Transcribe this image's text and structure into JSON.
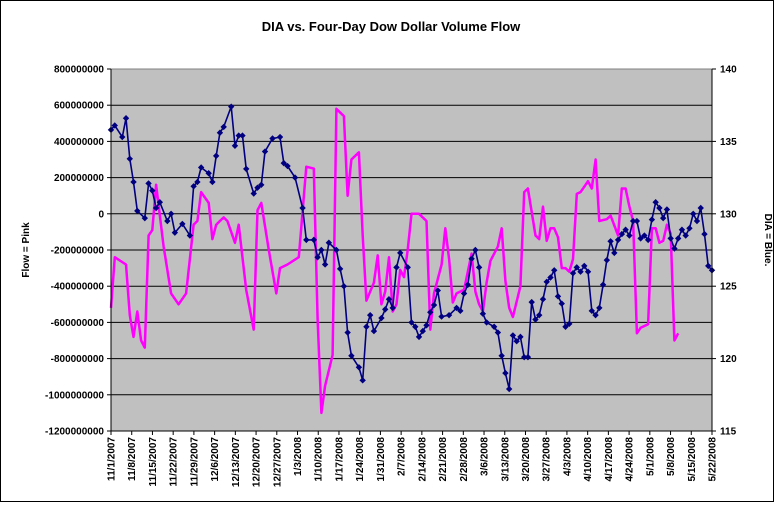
{
  "chart_data": {
    "type": "line",
    "title": "DIA vs. Four-Day Dow Dollar Volume Flow",
    "ylabel_left": "Flow = Pink",
    "ylabel_right": "DIA = Blue.",
    "y_left_range": [
      -1200000000,
      800000000
    ],
    "y_left_ticks": [
      "800000000",
      "600000000",
      "400000000",
      "200000000",
      "0",
      "-200000000",
      "-400000000",
      "-600000000",
      "-800000000",
      "-1000000000",
      "-1200000000"
    ],
    "y_right_range": [
      115,
      140
    ],
    "y_right_ticks": [
      "140",
      "135",
      "130",
      "125",
      "120",
      "115"
    ],
    "x_tick_labels": [
      "11/1/2007",
      "11/8/2007",
      "11/15/2007",
      "11/22/2007",
      "11/29/2007",
      "12/6/2007",
      "12/13/2007",
      "12/20/2007",
      "12/27/2007",
      "1/3/2008",
      "1/10/2008",
      "1/17/2008",
      "1/24/2008",
      "1/31/2008",
      "2/7/2008",
      "2/14/2008",
      "2/21/2008",
      "2/28/2008",
      "3/6/2008",
      "3/13/2008",
      "3/20/2008",
      "3/27/2008",
      "4/3/2008",
      "4/10/2008",
      "4/17/2008",
      "4/24/2008",
      "5/1/2008",
      "5/8/2008",
      "5/15/2008",
      "5/22/2008"
    ],
    "x_range": [
      "2007-11-01",
      "2008-05-22"
    ],
    "grid": "horizontal",
    "plot_background": "#C0C0C0",
    "series": [
      {
        "name": "Flow",
        "axis": "left",
        "color": "#FF00FF",
        "values": [
          [
            0,
            -520000000
          ],
          [
            1,
            -240000000
          ],
          [
            4,
            -280000000
          ],
          [
            5,
            -560000000
          ],
          [
            6,
            -680000000
          ],
          [
            7,
            -540000000
          ],
          [
            8,
            -700000000
          ],
          [
            9,
            -740000000
          ],
          [
            10,
            -120000000
          ],
          [
            11,
            -90000000
          ],
          [
            12,
            160000000
          ],
          [
            14,
            -180000000
          ],
          [
            16,
            -440000000
          ],
          [
            18,
            -500000000
          ],
          [
            20,
            -440000000
          ],
          [
            22,
            -60000000
          ],
          [
            23,
            -40000000
          ],
          [
            24,
            120000000
          ],
          [
            26,
            60000000
          ],
          [
            27,
            -140000000
          ],
          [
            28,
            -60000000
          ],
          [
            29,
            -40000000
          ],
          [
            30,
            -20000000
          ],
          [
            31,
            -40000000
          ],
          [
            33,
            -160000000
          ],
          [
            34,
            -60000000
          ],
          [
            36,
            -420000000
          ],
          [
            38,
            -640000000
          ],
          [
            39,
            20000000
          ],
          [
            40,
            60000000
          ],
          [
            42,
            -200000000
          ],
          [
            44,
            -440000000
          ],
          [
            45,
            -300000000
          ],
          [
            47,
            -280000000
          ],
          [
            50,
            -240000000
          ],
          [
            52,
            260000000
          ],
          [
            54,
            250000000
          ],
          [
            55,
            -580000000
          ],
          [
            56,
            -1100000000
          ],
          [
            57,
            -950000000
          ],
          [
            59,
            -780000000
          ],
          [
            60,
            580000000
          ],
          [
            62,
            540000000
          ],
          [
            63,
            100000000
          ],
          [
            64,
            300000000
          ],
          [
            66,
            340000000
          ],
          [
            67,
            -120000000
          ],
          [
            68,
            -480000000
          ],
          [
            70,
            -380000000
          ],
          [
            71,
            -230000000
          ],
          [
            72,
            -500000000
          ],
          [
            73,
            -430000000
          ],
          [
            74,
            -240000000
          ],
          [
            75,
            -540000000
          ],
          [
            76,
            -500000000
          ],
          [
            77,
            -310000000
          ],
          [
            78,
            -350000000
          ],
          [
            79,
            -200000000
          ],
          [
            80,
            0
          ],
          [
            82,
            0
          ],
          [
            84,
            -40000000
          ],
          [
            85,
            -640000000
          ],
          [
            86,
            -440000000
          ],
          [
            88,
            -280000000
          ],
          [
            89,
            -80000000
          ],
          [
            90,
            -250000000
          ],
          [
            91,
            -490000000
          ],
          [
            92,
            -440000000
          ],
          [
            94,
            -420000000
          ],
          [
            95,
            -320000000
          ],
          [
            96,
            -220000000
          ],
          [
            97,
            -430000000
          ],
          [
            98,
            -500000000
          ],
          [
            99,
            -540000000
          ],
          [
            100,
            -380000000
          ],
          [
            101,
            -260000000
          ],
          [
            103,
            -180000000
          ],
          [
            104,
            -80000000
          ],
          [
            105,
            -370000000
          ],
          [
            106,
            -520000000
          ],
          [
            107,
            -570000000
          ],
          [
            109,
            -400000000
          ],
          [
            110,
            120000000
          ],
          [
            111,
            140000000
          ],
          [
            113,
            -120000000
          ],
          [
            114,
            -140000000
          ],
          [
            115,
            40000000
          ],
          [
            116,
            -150000000
          ],
          [
            117,
            -80000000
          ],
          [
            118,
            -80000000
          ],
          [
            119,
            -130000000
          ],
          [
            120,
            -300000000
          ],
          [
            121,
            -300000000
          ],
          [
            122,
            -320000000
          ],
          [
            123,
            -250000000
          ],
          [
            124,
            110000000
          ],
          [
            125,
            120000000
          ],
          [
            126,
            150000000
          ],
          [
            127,
            180000000
          ],
          [
            128,
            140000000
          ],
          [
            129,
            300000000
          ],
          [
            130,
            -40000000
          ],
          [
            132,
            -30000000
          ],
          [
            133,
            -10000000
          ],
          [
            135,
            -120000000
          ],
          [
            136,
            140000000
          ],
          [
            137,
            140000000
          ],
          [
            138,
            40000000
          ],
          [
            139,
            -40000000
          ],
          [
            140,
            -660000000
          ],
          [
            141,
            -630000000
          ],
          [
            142,
            -620000000
          ],
          [
            143,
            -610000000
          ],
          [
            144,
            -80000000
          ],
          [
            145,
            -80000000
          ],
          [
            146,
            -160000000
          ],
          [
            147,
            -150000000
          ],
          [
            148,
            -60000000
          ],
          [
            149,
            -110000000
          ],
          [
            150,
            -700000000
          ],
          [
            151,
            -660000000
          ]
        ]
      },
      {
        "name": "DIA",
        "axis": "right",
        "color": "#000080",
        "values": [
          [
            0,
            135.8
          ],
          [
            1,
            136.1
          ],
          [
            3,
            135.3
          ],
          [
            4,
            136.6
          ],
          [
            5,
            133.8
          ],
          [
            6,
            132.2
          ],
          [
            7,
            130.2
          ],
          [
            9,
            129.7
          ],
          [
            10,
            132.1
          ],
          [
            11,
            131.6
          ],
          [
            12,
            130.4
          ],
          [
            13,
            130.8
          ],
          [
            15,
            129.5
          ],
          [
            16,
            130.0
          ],
          [
            17,
            128.7
          ],
          [
            19,
            129.3
          ],
          [
            21,
            128.5
          ],
          [
            22,
            131.9
          ],
          [
            23,
            132.2
          ],
          [
            24,
            133.2
          ],
          [
            26,
            132.8
          ],
          [
            27,
            132.2
          ],
          [
            28,
            134.0
          ],
          [
            29,
            135.6
          ],
          [
            30,
            136.0
          ],
          [
            32,
            137.4
          ],
          [
            33,
            134.7
          ],
          [
            34,
            135.4
          ],
          [
            35,
            135.4
          ],
          [
            36,
            133.1
          ],
          [
            38,
            131.4
          ],
          [
            39,
            131.8
          ],
          [
            40,
            132.0
          ],
          [
            41,
            134.3
          ],
          [
            43,
            135.2
          ],
          [
            45,
            135.3
          ],
          [
            46,
            133.5
          ],
          [
            47,
            133.3
          ],
          [
            49,
            132.5
          ],
          [
            51,
            130.4
          ],
          [
            52,
            128.2
          ],
          [
            54,
            128.2
          ],
          [
            55,
            127.0
          ],
          [
            56,
            127.5
          ],
          [
            57,
            126.5
          ],
          [
            58,
            128.0
          ],
          [
            60,
            127.5
          ],
          [
            61,
            126.2
          ],
          [
            62,
            125.0
          ],
          [
            63,
            121.8
          ],
          [
            64,
            120.2
          ],
          [
            66,
            119.4
          ],
          [
            67,
            118.5
          ],
          [
            68,
            122.2
          ],
          [
            69,
            123.0
          ],
          [
            70,
            121.9
          ],
          [
            72,
            122.8
          ],
          [
            73,
            123.4
          ],
          [
            74,
            124.1
          ],
          [
            75,
            123.5
          ],
          [
            76,
            126.3
          ],
          [
            77,
            127.3
          ],
          [
            79,
            126.3
          ],
          [
            80,
            122.5
          ],
          [
            81,
            122.2
          ],
          [
            82,
            121.5
          ],
          [
            83,
            121.9
          ],
          [
            84,
            122.3
          ],
          [
            85,
            123.2
          ],
          [
            86,
            123.7
          ],
          [
            87,
            124.7
          ],
          [
            88,
            122.9
          ],
          [
            90,
            123.0
          ],
          [
            92,
            123.5
          ],
          [
            93,
            123.3
          ],
          [
            94,
            124.5
          ],
          [
            95,
            125.1
          ],
          [
            96,
            126.9
          ],
          [
            97,
            127.5
          ],
          [
            98,
            126.3
          ],
          [
            99,
            123.1
          ],
          [
            100,
            122.5
          ],
          [
            102,
            122.2
          ],
          [
            103,
            121.8
          ],
          [
            104,
            120.2
          ],
          [
            105,
            119.0
          ],
          [
            106,
            117.9
          ],
          [
            107,
            121.6
          ],
          [
            108,
            121.2
          ],
          [
            109,
            121.5
          ],
          [
            110,
            120.1
          ],
          [
            111,
            120.1
          ],
          [
            112,
            123.9
          ],
          [
            113,
            122.7
          ],
          [
            114,
            123.0
          ],
          [
            115,
            124.1
          ],
          [
            116,
            125.3
          ],
          [
            117,
            125.6
          ],
          [
            118,
            126.1
          ],
          [
            119,
            124.3
          ],
          [
            120,
            123.8
          ],
          [
            121,
            122.2
          ],
          [
            122,
            122.4
          ],
          [
            123,
            125.9
          ],
          [
            124,
            126.3
          ],
          [
            125,
            126.0
          ],
          [
            126,
            126.4
          ],
          [
            127,
            126.0
          ],
          [
            128,
            123.3
          ],
          [
            129,
            123.0
          ],
          [
            130,
            123.5
          ],
          [
            131,
            125.1
          ],
          [
            132,
            126.8
          ],
          [
            133,
            128.1
          ],
          [
            134,
            127.3
          ],
          [
            135,
            128.2
          ],
          [
            136,
            128.6
          ],
          [
            137,
            128.9
          ],
          [
            138,
            128.5
          ],
          [
            139,
            129.5
          ],
          [
            140,
            129.5
          ],
          [
            141,
            128.3
          ],
          [
            142,
            128.5
          ],
          [
            143,
            128.2
          ],
          [
            144,
            129.6
          ],
          [
            145,
            130.8
          ],
          [
            146,
            130.4
          ],
          [
            147,
            129.7
          ],
          [
            148,
            130.3
          ],
          [
            149,
            128.3
          ],
          [
            150,
            127.6
          ],
          [
            151,
            128.3
          ],
          [
            152,
            128.9
          ],
          [
            153,
            128.5
          ],
          [
            154,
            129.0
          ],
          [
            155,
            130.0
          ],
          [
            156,
            129.5
          ],
          [
            157,
            130.4
          ],
          [
            158,
            128.6
          ],
          [
            159,
            126.4
          ],
          [
            160,
            126.1
          ]
        ]
      }
    ]
  }
}
